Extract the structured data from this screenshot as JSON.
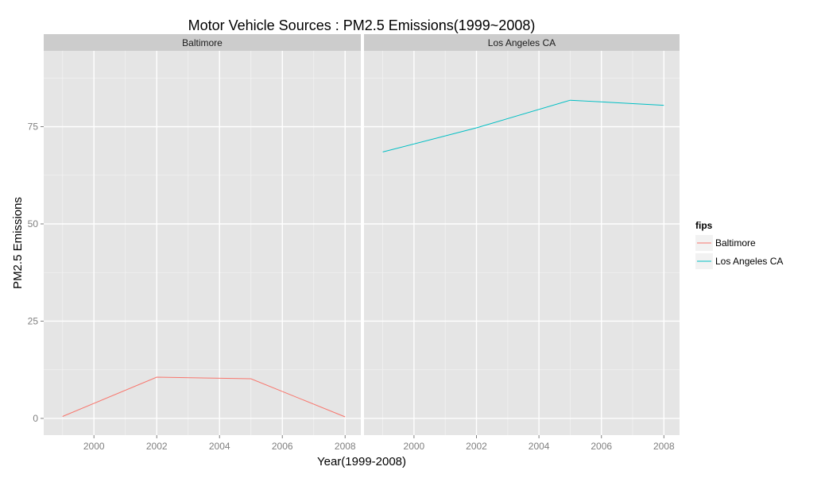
{
  "chart_data": {
    "type": "line",
    "title": "Motor Vehicle Sources : PM2.5 Emissions(1999~2008)",
    "xlabel": "Year(1999-2008)",
    "ylabel": "PM2.5 Emissions",
    "xlim": [
      1998.4,
      2008.5
    ],
    "ylim": [
      -4.3,
      94.5
    ],
    "x_ticks": [
      2000,
      2002,
      2004,
      2006,
      2008
    ],
    "x_tick_labels": [
      "2000",
      "2002",
      "2004",
      "2006",
      "2008"
    ],
    "y_ticks": [
      0,
      25,
      50,
      75
    ],
    "y_tick_labels": [
      "0",
      "25",
      "50",
      "75"
    ],
    "grid": true,
    "facets": [
      {
        "label": "Baltimore",
        "series": [
          {
            "name": "Baltimore",
            "color": "#F8766D",
            "x": [
              1999,
              2002,
              2005,
              2008
            ],
            "y": [
              0.5,
              10.6,
              10.2,
              0.4
            ]
          }
        ]
      },
      {
        "label": "Los Angeles CA",
        "series": [
          {
            "name": "Los Angeles CA",
            "color": "#00BFC4",
            "x": [
              1999,
              2002,
              2005,
              2008
            ],
            "y": [
              68.5,
              74.7,
              81.8,
              80.5
            ]
          }
        ]
      }
    ],
    "legend": {
      "title": "fips",
      "position": "right",
      "entries": [
        {
          "label": "Baltimore",
          "color": "#F8766D"
        },
        {
          "label": "Los Angeles CA",
          "color": "#00BFC4"
        }
      ]
    }
  }
}
